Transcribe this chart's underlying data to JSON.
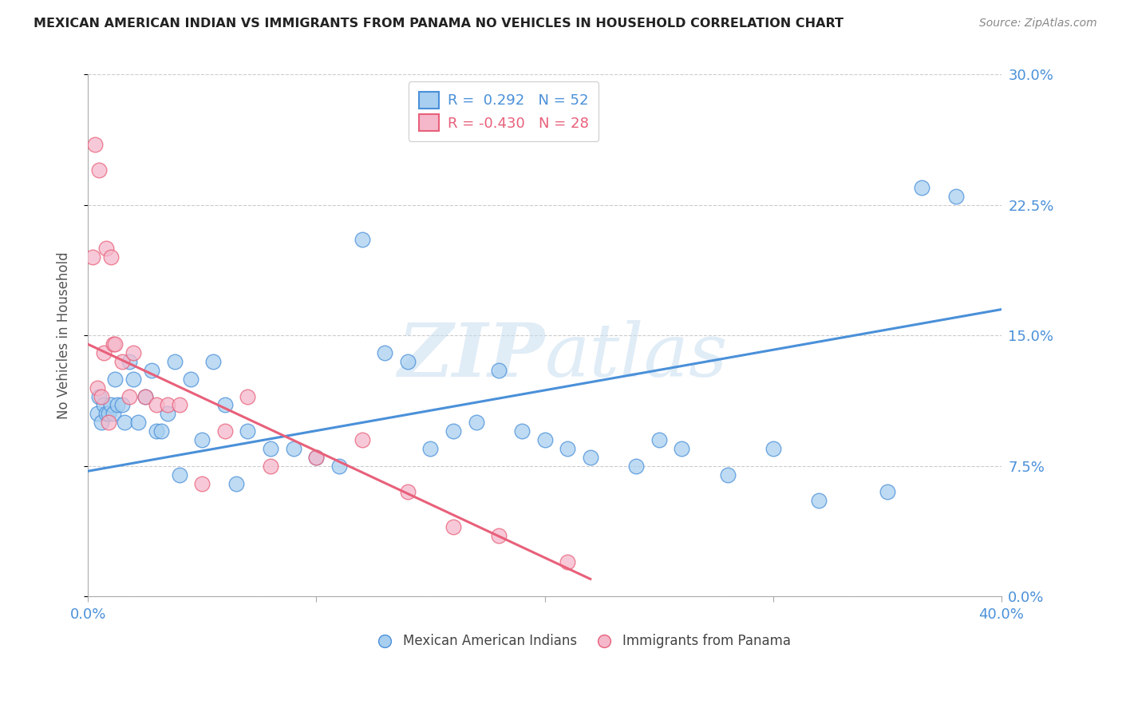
{
  "title": "MEXICAN AMERICAN INDIAN VS IMMIGRANTS FROM PANAMA NO VEHICLES IN HOUSEHOLD CORRELATION CHART",
  "source": "Source: ZipAtlas.com",
  "ylabel": "No Vehicles in Household",
  "ytick_values": [
    0.0,
    7.5,
    15.0,
    22.5,
    30.0
  ],
  "xlim": [
    0.0,
    40.0
  ],
  "ylim": [
    0.0,
    30.0
  ],
  "blue_color": "#A8CFF0",
  "pink_color": "#F5B8CB",
  "blue_line_color": "#4A90D9",
  "pink_line_color": "#E8607A",
  "watermark_zip": "ZIP",
  "watermark_atlas": "atlas",
  "blue_line_x0": 0.0,
  "blue_line_y0": 7.2,
  "blue_line_x1": 40.0,
  "blue_line_y1": 16.5,
  "pink_line_x0": 0.0,
  "pink_line_y0": 14.5,
  "pink_line_x1": 22.0,
  "pink_line_y1": 1.0,
  "blue_scatter_x": [
    0.4,
    0.5,
    0.6,
    0.7,
    0.8,
    0.9,
    1.0,
    1.1,
    1.2,
    1.3,
    1.5,
    1.6,
    1.8,
    2.0,
    2.2,
    2.5,
    2.8,
    3.0,
    3.2,
    3.5,
    3.8,
    4.0,
    4.5,
    5.0,
    5.5,
    6.0,
    6.5,
    7.0,
    8.0,
    9.0,
    10.0,
    11.0,
    12.0,
    13.0,
    14.0,
    15.0,
    16.0,
    17.0,
    18.0,
    19.0,
    20.0,
    21.0,
    22.0,
    24.0,
    25.0,
    26.0,
    28.0,
    30.0,
    32.0,
    35.0,
    36.5,
    38.0
  ],
  "blue_scatter_y": [
    10.5,
    11.5,
    10.0,
    11.0,
    10.5,
    10.5,
    11.0,
    10.5,
    12.5,
    11.0,
    11.0,
    10.0,
    13.5,
    12.5,
    10.0,
    11.5,
    13.0,
    9.5,
    9.5,
    10.5,
    13.5,
    7.0,
    12.5,
    9.0,
    13.5,
    11.0,
    6.5,
    9.5,
    8.5,
    8.5,
    8.0,
    7.5,
    20.5,
    14.0,
    13.5,
    8.5,
    9.5,
    10.0,
    13.0,
    9.5,
    9.0,
    8.5,
    8.0,
    7.5,
    9.0,
    8.5,
    7.0,
    8.5,
    5.5,
    6.0,
    23.5,
    23.0
  ],
  "pink_scatter_x": [
    0.2,
    0.3,
    0.4,
    0.5,
    0.6,
    0.7,
    0.8,
    0.9,
    1.0,
    1.1,
    1.2,
    1.5,
    1.8,
    2.0,
    2.5,
    3.0,
    3.5,
    4.0,
    5.0,
    6.0,
    7.0,
    8.0,
    10.0,
    12.0,
    14.0,
    16.0,
    18.0,
    21.0
  ],
  "pink_scatter_y": [
    19.5,
    26.0,
    12.0,
    24.5,
    11.5,
    14.0,
    20.0,
    10.0,
    19.5,
    14.5,
    14.5,
    13.5,
    11.5,
    14.0,
    11.5,
    11.0,
    11.0,
    11.0,
    6.5,
    9.5,
    11.5,
    7.5,
    8.0,
    9.0,
    6.0,
    4.0,
    3.5,
    2.0
  ]
}
